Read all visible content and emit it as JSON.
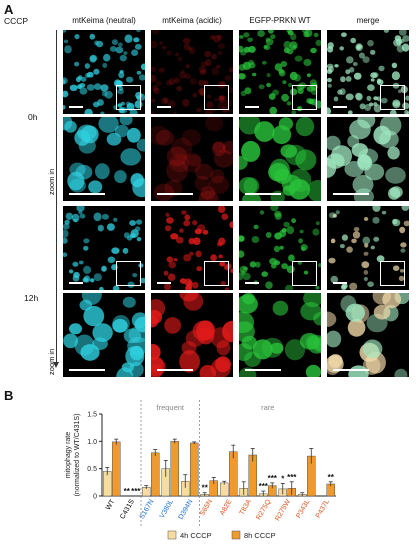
{
  "panel_a": {
    "letter": "A",
    "treatment_label": "CCCP",
    "columns": [
      "mtKeima (neutral)",
      "mtKeima (acidic)",
      "EGFP-PRKN WT",
      "merge"
    ],
    "timepoints": [
      "0h",
      "12h"
    ],
    "zoom_label": "zoom in",
    "channel_colors": {
      "neutral": "#2fd0e0",
      "acidic": "#e01a1a",
      "egfp": "#29c23a",
      "merge": "#9fe8c0"
    }
  },
  "panel_b": {
    "letter": "B",
    "group_labels": [
      "frequent",
      "rare"
    ],
    "legend": [
      "4h CCCP",
      "8h CCCP"
    ]
  },
  "chart_data": {
    "type": "bar",
    "ylabel": "mitophagy rate\n(normalized to WT/C431S)",
    "ylim": [
      0,
      1.5
    ],
    "yticks": [
      "0",
      "0.5",
      "1.0",
      "1.5"
    ],
    "categories": [
      "WT",
      "C431S",
      "S167N",
      "V380L",
      "D394N",
      "S65N",
      "A82E",
      "T83A",
      "R275Q",
      "R275W",
      "P343L",
      "P437L"
    ],
    "category_colors": [
      "#000000",
      "#000000",
      "#1f6fd0",
      "#1f6fd0",
      "#1f6fd0",
      "#e2541c",
      "#e2541c",
      "#e2541c",
      "#e2541c",
      "#e2541c",
      "#e2541c",
      "#e2541c"
    ],
    "series": [
      {
        "name": "4h CCCP",
        "color": "#f7dca0",
        "values": [
          0.45,
          0.0,
          0.16,
          0.5,
          0.27,
          0.03,
          0.24,
          0.14,
          0.04,
          0.13,
          0.03,
          0.0
        ],
        "errors": [
          0.07,
          0.0,
          0.03,
          0.15,
          0.12,
          0.03,
          0.03,
          0.12,
          0.05,
          0.1,
          0.03,
          0.0
        ]
      },
      {
        "name": "8h CCCP",
        "color": "#ee9a2c",
        "values": [
          0.99,
          0.0,
          0.79,
          1.0,
          0.97,
          0.28,
          0.81,
          0.75,
          0.19,
          0.14,
          0.73,
          0.22
        ],
        "errors": [
          0.05,
          0.0,
          0.06,
          0.04,
          0.02,
          0.06,
          0.12,
          0.12,
          0.05,
          0.12,
          0.14,
          0.04
        ]
      }
    ],
    "annotations": [
      {
        "text": "**",
        "category": "C431S",
        "series": "4h CCCP"
      },
      {
        "text": "***",
        "category": "C431S",
        "series": "8h CCCP"
      },
      {
        "text": "**",
        "category": "S65N",
        "series": "4h CCCP"
      },
      {
        "text": "***",
        "category": "R275Q",
        "series": "4h CCCP"
      },
      {
        "text": "***",
        "category": "R275Q",
        "series": "8h CCCP"
      },
      {
        "text": "*",
        "category": "R275W",
        "series": "4h CCCP"
      },
      {
        "text": "***",
        "category": "R275W",
        "series": "8h CCCP"
      },
      {
        "text": "**",
        "category": "P437L",
        "series": "8h CCCP"
      }
    ],
    "group_dividers_after": [
      "C431S",
      "D394N"
    ]
  }
}
